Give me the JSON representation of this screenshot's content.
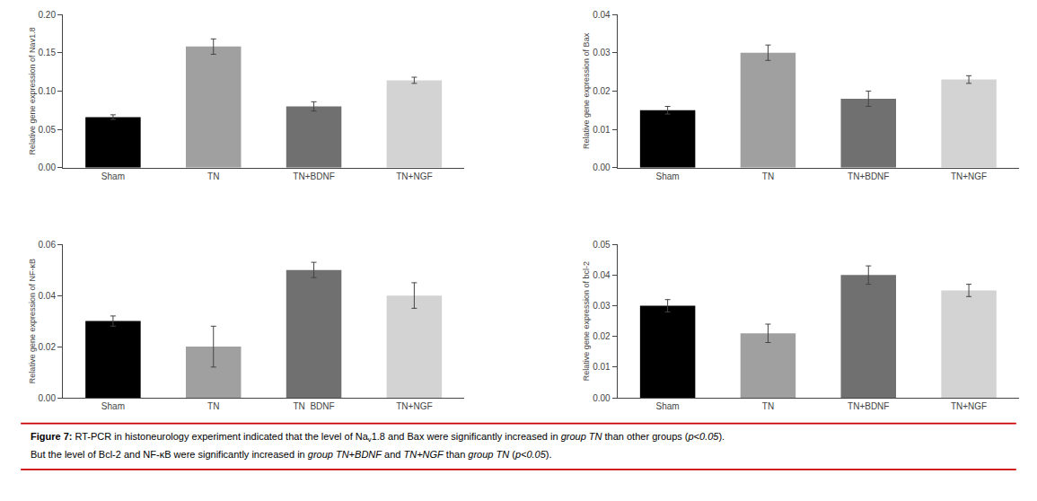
{
  "chart_data": [
    {
      "type": "bar",
      "ylabel": "Relative gene expression of Nav1.8",
      "categories": [
        "Sham",
        "TN",
        "TN+BDNF",
        "TN+NGF"
      ],
      "values": [
        0.066,
        0.158,
        0.08,
        0.114
      ],
      "errors": [
        0.003,
        0.01,
        0.006,
        0.004
      ],
      "colors": [
        "#000000",
        "#a0a0a0",
        "#707070",
        "#d3d3d3"
      ],
      "ylim": [
        0,
        0.2
      ],
      "yticks": [
        {
          "value": 0,
          "label": "0.00"
        },
        0.05,
        {
          "value": 0.1,
          "label": "0.10"
        },
        0.15,
        {
          "value": 0.2,
          "label": "0.20"
        }
      ],
      "grid": false
    },
    {
      "type": "bar",
      "ylabel": "Relative gene expression of Bax",
      "categories": [
        "Sham",
        "TN",
        "TN+BDNF",
        "TN+NGF"
      ],
      "values": [
        0.015,
        0.03,
        0.018,
        0.023
      ],
      "errors": [
        0.001,
        0.002,
        0.002,
        0.001
      ],
      "colors": [
        "#000000",
        "#a0a0a0",
        "#707070",
        "#d3d3d3"
      ],
      "ylim": [
        0,
        0.04
      ],
      "yticks": [
        {
          "value": 0,
          "label": "0.00"
        },
        0.01,
        0.02,
        0.03,
        0.04
      ],
      "grid": false
    },
    {
      "type": "bar",
      "ylabel": "Relative gene expression of NF-κB",
      "categories": [
        "Sham",
        "TN",
        "TN  BDNF",
        "TN+NGF"
      ],
      "values": [
        0.03,
        0.02,
        0.05,
        0.04
      ],
      "errors": [
        0.002,
        0.008,
        0.003,
        0.005
      ],
      "colors": [
        "#000000",
        "#a0a0a0",
        "#707070",
        "#d3d3d3"
      ],
      "ylim": [
        0,
        0.06
      ],
      "yticks": [
        {
          "value": 0,
          "label": "0.00"
        },
        0.02,
        0.04,
        0.06
      ],
      "grid": false
    },
    {
      "type": "bar",
      "ylabel": "Relative gene expression of bcl-2",
      "categories": [
        "Sham",
        "TN",
        "TN+BDNF",
        "TN+NGF"
      ],
      "values": [
        0.03,
        0.021,
        0.04,
        0.035
      ],
      "errors": [
        0.002,
        0.003,
        0.003,
        0.002
      ],
      "colors": [
        "#000000",
        "#a0a0a0",
        "#707070",
        "#d3d3d3"
      ],
      "ylim": [
        0,
        0.05
      ],
      "yticks": [
        {
          "value": 0,
          "label": "0.00"
        },
        0.01,
        0.02,
        0.03,
        0.04,
        0.05
      ],
      "grid": false
    }
  ],
  "caption": [
    [
      {
        "text": "Figure 7:",
        "style": "bold"
      },
      {
        "text": " RT-PCR in histoneurology experiment indicated that the level of Na"
      },
      {
        "text": "v",
        "style": "subscript"
      },
      {
        "text": "1.8 and Bax were significantly increased in "
      },
      {
        "text": "group TN",
        "style": "italic"
      },
      {
        "text": " than other groups ("
      },
      {
        "text": "p<0.05",
        "style": "italic"
      },
      {
        "text": ")."
      }
    ],
    [
      {
        "text": "But the level of Bcl-2 and NF-κB were significantly increased in "
      },
      {
        "text": "group TN+BDNF",
        "style": "italic"
      },
      {
        "text": " and "
      },
      {
        "text": "TN+NGF",
        "style": "italic"
      },
      {
        "text": " than "
      },
      {
        "text": "group TN",
        "style": "italic"
      },
      {
        "text": " ("
      },
      {
        "text": "p<0.05",
        "style": "italic"
      },
      {
        "text": ")."
      }
    ]
  ],
  "rule_color": "#cc0000"
}
